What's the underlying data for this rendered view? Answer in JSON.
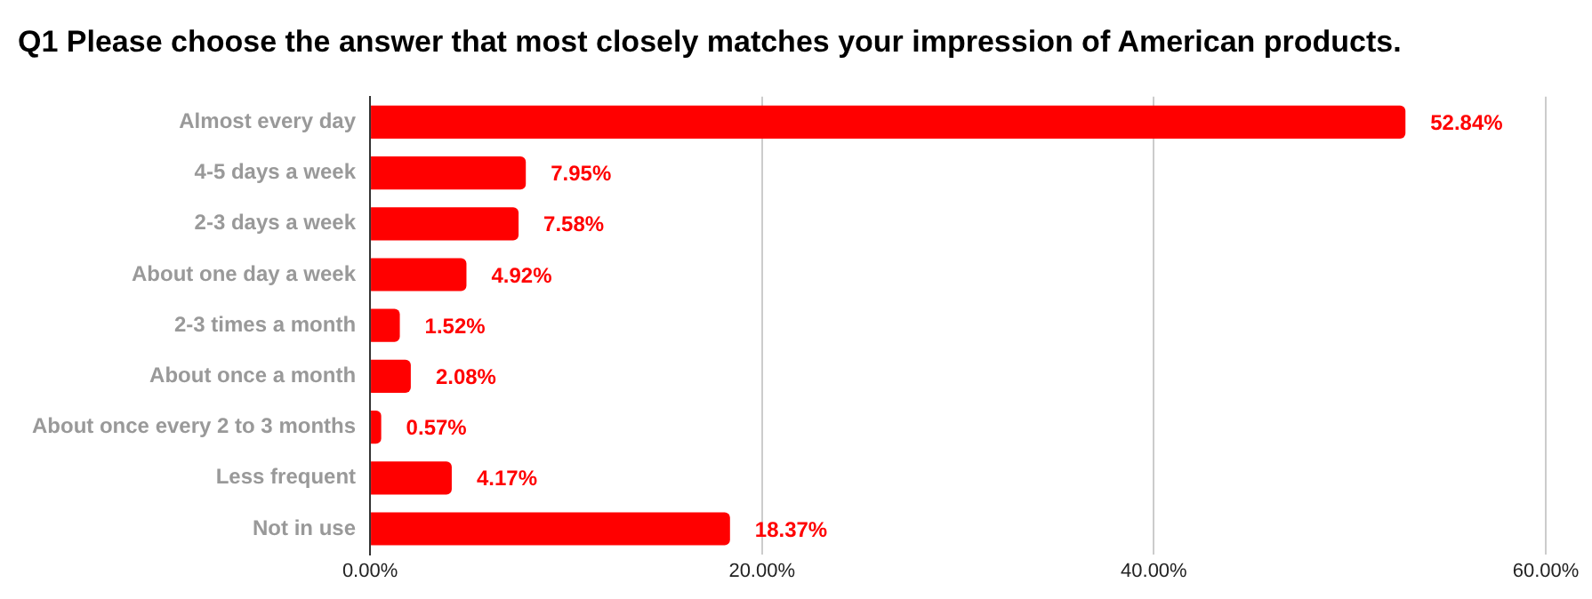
{
  "chart_data": {
    "type": "bar",
    "orientation": "horizontal",
    "title": "Q1 Please choose the answer that most closely matches your impression of American products.",
    "categories": [
      "Almost every day",
      "4-5 days a week",
      "2-3 days a week",
      "About one day a week",
      "2-3 times a month",
      "About once a month",
      "About once every 2 to 3 months",
      "Less frequent",
      "Not in use"
    ],
    "values": [
      52.84,
      7.95,
      7.58,
      4.92,
      1.52,
      2.08,
      0.57,
      4.17,
      18.37
    ],
    "value_labels": [
      "52.84%",
      "7.95%",
      "7.58%",
      "4.92%",
      "1.52%",
      "2.08%",
      "0.57%",
      "4.17%",
      "18.37%"
    ],
    "color": "#ff0000",
    "xlim": [
      0,
      60
    ],
    "xticks": [
      {
        "value": 0,
        "label": "0.00%"
      },
      {
        "value": 20,
        "label": "20.00%"
      },
      {
        "value": 40,
        "label": "40.00%"
      },
      {
        "value": 60,
        "label": "60.00%"
      }
    ],
    "grid": "x",
    "legend": false
  }
}
